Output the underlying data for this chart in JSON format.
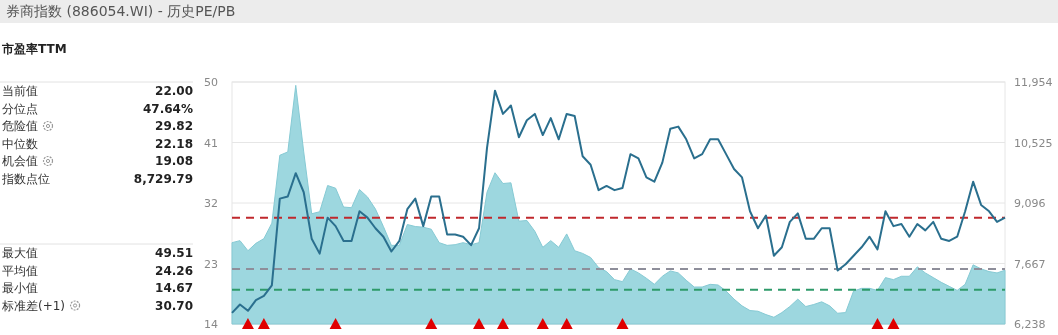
{
  "chart_data": [
    {
      "type": "other",
      "title": "券商指数 (886054.WI) - 历史PE/PB",
      "subtitle": "市盈率TTM",
      "annotations": [
        "当前值",
        "22.00",
        "分位点",
        "47.64%",
        "危险值",
        "29.82",
        "中位数",
        "22.18",
        "机会值",
        "19.08",
        "指数点位",
        "8,729.79",
        "最大值",
        "49.51",
        "平均值",
        "24.26",
        "最小值",
        "14.67",
        "标准差(+1)",
        "30.70"
      ]
    },
    {
      "type": "area",
      "categories": [
        null,
        null,
        null,
        null,
        null,
        null,
        null,
        null,
        null,
        null,
        null,
        null,
        null,
        null,
        null,
        null,
        null,
        null,
        null,
        null,
        null,
        null,
        null,
        null,
        null,
        null,
        null,
        null,
        null,
        null,
        null,
        null,
        null,
        null,
        null,
        null,
        null,
        null,
        null,
        null,
        null,
        null,
        null,
        null,
        null,
        null,
        null,
        null,
        null,
        null,
        null,
        null,
        null,
        null,
        null,
        null,
        null,
        null,
        null,
        null,
        null,
        null,
        null,
        null,
        null,
        null,
        null,
        null,
        null,
        null,
        null,
        null,
        null,
        null,
        null,
        null,
        null,
        null,
        null,
        null,
        null,
        null,
        null,
        null,
        null,
        null,
        null,
        null,
        null,
        null,
        null,
        null,
        null,
        null,
        null,
        null,
        null,
        null
      ],
      "series": [
        {
          "type": "area",
          "color": "#9dd7df",
          "values": [
            26.1,
            26.4,
            24.9,
            26.0,
            26.7,
            29.0,
            39.1,
            39.6,
            49.5,
            39.6,
            30.4,
            30.7,
            34.6,
            34.2,
            31.4,
            31.3,
            34.0,
            32.9,
            31.1,
            28.5,
            25.7,
            25.7,
            28.8,
            28.5,
            28.4,
            28.1,
            26.1,
            25.7,
            25.8,
            26.1,
            25.8,
            26.1,
            33.6,
            36.5,
            34.9,
            35.0,
            29.3,
            29.4,
            27.8,
            25.4,
            26.4,
            25.4,
            27.4,
            24.9,
            24.5,
            23.9,
            22.4,
            21.8,
            20.6,
            20.3,
            22.2,
            21.6,
            20.8,
            19.9,
            21.1,
            21.9,
            21.6,
            20.5,
            19.5,
            19.5,
            19.9,
            19.8,
            18.9,
            17.7,
            16.7,
            16.0,
            15.9,
            15.4,
            15.0,
            15.7,
            16.6,
            17.7,
            16.6,
            16.9,
            17.3,
            16.7,
            15.6,
            15.7,
            18.9,
            19.3,
            19.3,
            19.0,
            20.9,
            20.6,
            21.1,
            21.1,
            22.5,
            21.6,
            20.9,
            20.2,
            19.6,
            19.0,
            19.9,
            22.8,
            22.2,
            21.8,
            21.6,
            22.0
          ]
        },
        {
          "type": "line",
          "axis": "y2",
          "color": "#2a6f8e",
          "values": [
            6500,
            6700,
            6550,
            6800,
            6900,
            7150,
            9200,
            9250,
            9800,
            9350,
            8250,
            7900,
            8750,
            8550,
            8200,
            8200,
            8900,
            8750,
            8500,
            8300,
            7950,
            8200,
            8950,
            9200,
            8550,
            9250,
            9250,
            8350,
            8350,
            8300,
            8100,
            8500,
            10400,
            11750,
            11200,
            11400,
            10650,
            11050,
            11200,
            10700,
            11100,
            10600,
            11200,
            11150,
            10200,
            10000,
            9400,
            9500,
            9400,
            9450,
            10250,
            10150,
            9700,
            9600,
            10050,
            10850,
            10900,
            10600,
            10150,
            10250,
            10600,
            10600,
            10250,
            9900,
            9700,
            8900,
            8500,
            8800,
            7850,
            8050,
            8650,
            8850,
            8250,
            8250,
            8500,
            8500,
            7500,
            7650,
            7850,
            8050,
            8300,
            8000,
            8900,
            8550,
            8600,
            8300,
            8600,
            8450,
            8650,
            8250,
            8200,
            8300,
            8900,
            9600,
            9050,
            8900,
            8650,
            8750
          ]
        },
        {
          "type": "scatter",
          "marker": "triangle",
          "color": "#e00000",
          "values": [
            null,
            null,
            14,
            null,
            14,
            null,
            null,
            null,
            null,
            null,
            null,
            null,
            null,
            14,
            null,
            null,
            null,
            null,
            null,
            null,
            null,
            null,
            null,
            null,
            null,
            14,
            null,
            null,
            null,
            null,
            null,
            14,
            null,
            null,
            14,
            null,
            null,
            null,
            null,
            14,
            null,
            null,
            14,
            null,
            null,
            null,
            null,
            null,
            null,
            14,
            null,
            null,
            null,
            null,
            null,
            null,
            null,
            null,
            null,
            null,
            null,
            null,
            null,
            null,
            null,
            null,
            null,
            null,
            null,
            null,
            null,
            null,
            null,
            null,
            null,
            null,
            null,
            null,
            null,
            null,
            null,
            14,
            null,
            14,
            null,
            null,
            null,
            null,
            null,
            null,
            null,
            null,
            null,
            null,
            null,
            null,
            null,
            null
          ]
        }
      ],
      "ylim": [
        14,
        50
      ],
      "yticks": [
        14,
        23,
        32,
        41,
        50
      ],
      "y2lim": [
        6238,
        11954
      ],
      "y2ticks": [
        {
          "value": 6238,
          "label": "6,238"
        },
        {
          "value": 7667,
          "label": "7,667"
        },
        {
          "value": 9096,
          "label": "9,096"
        },
        {
          "value": 10525,
          "label": "10,525"
        },
        {
          "value": 11954,
          "label": "11,954"
        }
      ],
      "ref_lines": [
        {
          "axis": "y",
          "value": 29.82,
          "color": "#c0282d",
          "line_style": "dashed"
        },
        {
          "axis": "y",
          "value": 22.18,
          "color": "#8e8e9a",
          "line_style": "dashed"
        },
        {
          "axis": "y",
          "value": 19.08,
          "color": "#2e9a6a",
          "line_style": "dashed"
        }
      ],
      "grid": "y",
      "tick_labels": "y"
    }
  ]
}
